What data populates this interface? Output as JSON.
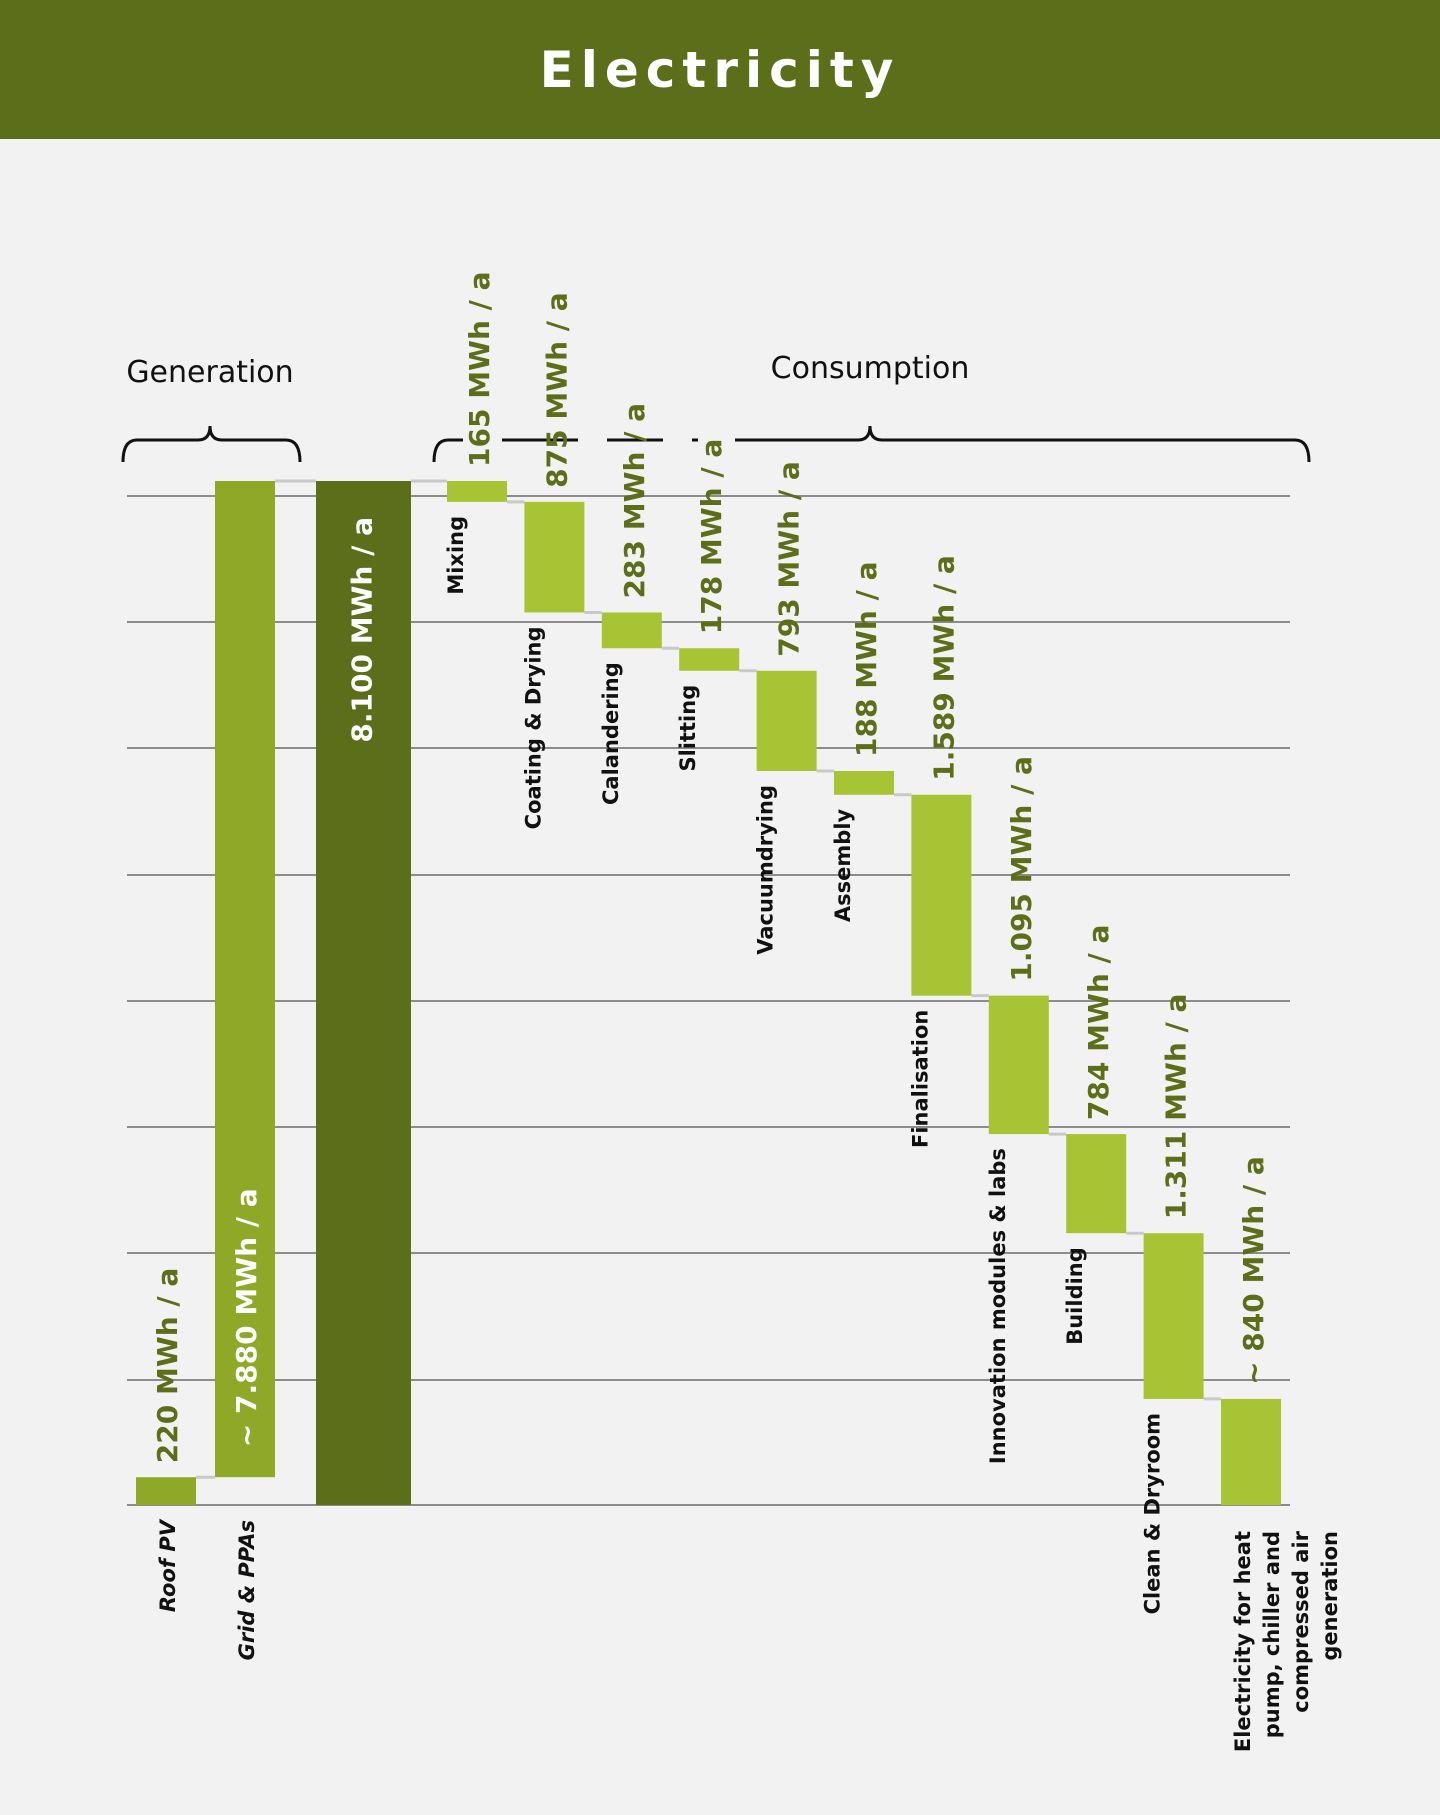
{
  "title": "Electricity",
  "chart_data": {
    "type": "waterfall",
    "title": "Electricity",
    "unit": "MWh / a",
    "groups": [
      {
        "label": "Generation"
      },
      {
        "label": "Consumption"
      }
    ],
    "generation": [
      {
        "category": "Roof PV",
        "value": 220,
        "label": "220 MWh / a"
      },
      {
        "category": "Grid & PPAs",
        "value": 7880,
        "label": "~ 7.880 MWh / a"
      }
    ],
    "total": {
      "value": 8100,
      "label": "8.100 MWh / a"
    },
    "consumption": [
      {
        "category": "Mixing",
        "value": 165,
        "label": "165 MWh / a"
      },
      {
        "category": "Coating & Drying",
        "value": 875,
        "label": "875 MWh / a"
      },
      {
        "category": "Calandering",
        "value": 283,
        "label": "283 MWh / a"
      },
      {
        "category": "Slitting",
        "value": 178,
        "label": "178 MWh / a"
      },
      {
        "category": "Vacuumdrying",
        "value": 793,
        "label": "793 MWh / a"
      },
      {
        "category": "Assembly",
        "value": 188,
        "label": "188 MWh / a"
      },
      {
        "category": "Finalisation",
        "value": 1589,
        "label": "1.589 MWh / a"
      },
      {
        "category": "Innovation modules & labs",
        "value": 1095,
        "label": "1.095 MWh / a"
      },
      {
        "category": "Building",
        "value": 784,
        "label": "784 MWh / a"
      },
      {
        "category": "Clean & Dryroom",
        "value": 1311,
        "label": "1.311 MWh / a"
      },
      {
        "category": "Electricity for heat pump, chiller and compressed air generation",
        "value": 840,
        "label": "~ 840 MWh / a"
      }
    ],
    "ylim": [
      0,
      8100
    ],
    "grid": true,
    "colors": {
      "header": "#5c6e1a",
      "generation_bar": "#8fa828",
      "total_bar": "#5c6e1a",
      "consumption_bar": "#a8c435",
      "value_label": "#5c6e1a",
      "value_label_on_bar": "#ffffff"
    }
  }
}
